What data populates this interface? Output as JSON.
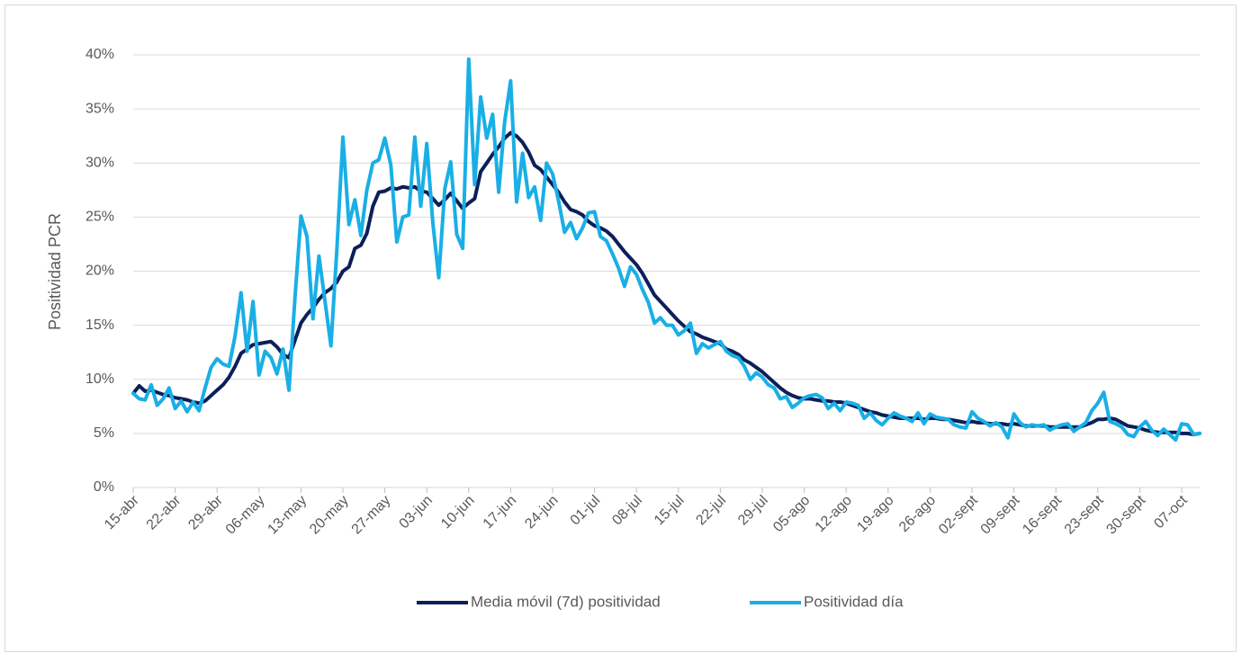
{
  "chart_data": {
    "type": "line",
    "y_label": "Positividad PCR",
    "categories": [
      "15-abr",
      null,
      null,
      null,
      null,
      null,
      null,
      "22-abr",
      null,
      null,
      null,
      null,
      null,
      null,
      "29-abr",
      null,
      null,
      null,
      null,
      null,
      null,
      "06-may",
      null,
      null,
      null,
      null,
      null,
      null,
      "13-may",
      null,
      null,
      null,
      null,
      null,
      null,
      "20-may",
      null,
      null,
      null,
      null,
      null,
      null,
      "27-may",
      null,
      null,
      null,
      null,
      null,
      null,
      "03-jun",
      null,
      null,
      null,
      null,
      null,
      null,
      "10-jun",
      null,
      null,
      null,
      null,
      null,
      null,
      "17-jun",
      null,
      null,
      null,
      null,
      null,
      null,
      "24-jun",
      null,
      null,
      null,
      null,
      null,
      null,
      "01-jul",
      null,
      null,
      null,
      null,
      null,
      null,
      "08-jul",
      null,
      null,
      null,
      null,
      null,
      null,
      "15-jul",
      null,
      null,
      null,
      null,
      null,
      null,
      "22-jul",
      null,
      null,
      null,
      null,
      null,
      null,
      "29-jul",
      null,
      null,
      null,
      null,
      null,
      null,
      "05-ago",
      null,
      null,
      null,
      null,
      null,
      null,
      "12-ago",
      null,
      null,
      null,
      null,
      null,
      null,
      "19-ago",
      null,
      null,
      null,
      null,
      null,
      null,
      "26-ago",
      null,
      null,
      null,
      null,
      null,
      null,
      "02-sept",
      null,
      null,
      null,
      null,
      null,
      null,
      "09-sept",
      null,
      null,
      null,
      null,
      null,
      null,
      "16-sept",
      null,
      null,
      null,
      null,
      null,
      null,
      "23-sept",
      null,
      null,
      null,
      null,
      null,
      null,
      "30-sept",
      null,
      null,
      null,
      null,
      null,
      null,
      "07-oct",
      null,
      null,
      null
    ],
    "series": [
      {
        "name": "Media móvil (7d) positividad",
        "color": "#0c1f5a",
        "values": [
          8.7,
          9.4,
          8.9,
          9.0,
          8.8,
          8.6,
          8.5,
          8.3,
          8.2,
          8.1,
          7.9,
          7.8,
          8.0,
          8.5,
          9.0,
          9.5,
          10.2,
          11.2,
          12.4,
          12.8,
          13.2,
          13.3,
          13.4,
          13.5,
          13.0,
          12.3,
          12.0,
          13.6,
          15.2,
          16.0,
          16.6,
          17.4,
          18.0,
          18.4,
          19.0,
          20.0,
          20.4,
          22.1,
          22.4,
          23.5,
          26.0,
          27.3,
          27.4,
          27.7,
          27.6,
          27.8,
          27.7,
          27.8,
          27.4,
          27.3,
          26.7,
          26.1,
          26.6,
          27.2,
          26.5,
          25.8,
          26.3,
          26.7,
          29.2,
          30.0,
          30.8,
          31.5,
          32.3,
          32.8,
          32.5,
          31.9,
          31.0,
          29.8,
          29.4,
          28.7,
          28.0,
          27.3,
          26.4,
          25.7,
          25.5,
          25.2,
          24.6,
          24.2,
          24.0,
          23.7,
          23.2,
          22.5,
          21.8,
          21.2,
          20.6,
          19.8,
          18.8,
          17.8,
          17.2,
          16.6,
          16.0,
          15.4,
          14.9,
          14.4,
          14.2,
          13.9,
          13.7,
          13.5,
          13.3,
          12.8,
          12.6,
          12.3,
          11.8,
          11.5,
          11.1,
          10.7,
          10.2,
          9.7,
          9.2,
          8.8,
          8.5,
          8.3,
          8.2,
          8.2,
          8.1,
          8.0,
          8.0,
          7.9,
          7.9,
          7.8,
          7.6,
          7.4,
          7.2,
          7.0,
          6.9,
          6.7,
          6.6,
          6.5,
          6.4,
          6.4,
          6.4,
          6.4,
          6.3,
          6.4,
          6.4,
          6.3,
          6.3,
          6.2,
          6.1,
          6.0,
          6.1,
          6.0,
          6.0,
          5.9,
          5.9,
          5.9,
          5.8,
          5.9,
          5.8,
          5.7,
          5.7,
          5.7,
          5.7,
          5.6,
          5.6,
          5.6,
          5.6,
          5.6,
          5.6,
          5.8,
          6.0,
          6.3,
          6.3,
          6.4,
          6.3,
          6.0,
          5.7,
          5.6,
          5.5,
          5.3,
          5.2,
          5.1,
          5.1,
          5.1,
          5.1,
          5.0,
          5.0,
          4.9,
          5.0
        ]
      },
      {
        "name": "Positividad día",
        "color": "#19afe6",
        "values": [
          8.7,
          8.2,
          8.1,
          9.5,
          7.6,
          8.2,
          9.2,
          7.3,
          8.0,
          7.0,
          7.9,
          7.1,
          9.2,
          11.1,
          11.9,
          11.4,
          11.2,
          14.0,
          18.0,
          12.6,
          17.2,
          10.4,
          12.6,
          12.0,
          10.5,
          12.8,
          9.0,
          17.5,
          25.1,
          23.2,
          15.6,
          21.4,
          17.3,
          13.1,
          22.0,
          32.4,
          24.3,
          26.6,
          23.3,
          27.5,
          30.0,
          30.3,
          32.3,
          29.8,
          22.7,
          25.0,
          25.2,
          32.4,
          26.0,
          31.8,
          24.5,
          19.4,
          27.6,
          30.1,
          23.4,
          22.1,
          39.6,
          28.0,
          36.1,
          32.3,
          34.5,
          27.3,
          33.8,
          37.6,
          26.4,
          30.9,
          26.8,
          27.8,
          24.7,
          30.0,
          29.0,
          26.5,
          23.6,
          24.5,
          23.0,
          24.0,
          25.4,
          25.5,
          23.2,
          22.8,
          21.6,
          20.3,
          18.6,
          20.4,
          19.7,
          18.3,
          17.1,
          15.2,
          15.7,
          15.0,
          15.0,
          14.1,
          14.5,
          15.2,
          12.4,
          13.3,
          12.9,
          13.2,
          13.5,
          12.6,
          12.2,
          12.0,
          11.2,
          10.0,
          10.6,
          10.2,
          9.5,
          9.2,
          8.2,
          8.4,
          7.4,
          7.8,
          8.3,
          8.5,
          8.6,
          8.3,
          7.3,
          7.8,
          7.1,
          7.9,
          7.8,
          7.6,
          6.4,
          6.9,
          6.2,
          5.8,
          6.4,
          6.9,
          6.6,
          6.4,
          6.1,
          6.9,
          5.9,
          6.8,
          6.5,
          6.4,
          6.3,
          5.8,
          5.6,
          5.5,
          7.0,
          6.4,
          6.1,
          5.7,
          6.0,
          5.6,
          4.6,
          6.8,
          6.0,
          5.6,
          5.8,
          5.7,
          5.8,
          5.3,
          5.6,
          5.8,
          5.9,
          5.2,
          5.6,
          6.0,
          7.1,
          7.8,
          8.8,
          6.1,
          5.9,
          5.6,
          4.9,
          4.7,
          5.6,
          6.1,
          5.3,
          4.8,
          5.4,
          4.9,
          4.4,
          5.9,
          5.8,
          4.9,
          5.0
        ]
      }
    ],
    "ylim": [
      0,
      40
    ],
    "yticks": [
      {
        "value": 0,
        "label": "0%"
      },
      {
        "value": 5,
        "label": "5%"
      },
      {
        "value": 10,
        "label": "10%"
      },
      {
        "value": 15,
        "label": "15%"
      },
      {
        "value": 20,
        "label": "20%"
      },
      {
        "value": 25,
        "label": "25%"
      },
      {
        "value": 30,
        "label": "30%"
      },
      {
        "value": 35,
        "label": "35%"
      },
      {
        "value": 40,
        "label": "40%"
      }
    ],
    "grid": true,
    "legend": "bottom"
  }
}
